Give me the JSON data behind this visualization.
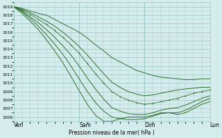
{
  "title": "",
  "xlabel": "Pression niveau de la mer( hPa )",
  "ylabel": "",
  "bg_color": "#d4ecec",
  "grid_color": "#a0c8c8",
  "line_color": "#2d6e2d",
  "ylim": [
    1005.5,
    1019.5
  ],
  "yticks": [
    1006,
    1007,
    1008,
    1009,
    1010,
    1011,
    1012,
    1013,
    1014,
    1015,
    1016,
    1017,
    1018,
    1019
  ],
  "day_labels": [
    "Ven",
    "Sam",
    "Dim",
    "Lun"
  ],
  "day_positions": [
    0,
    48,
    96,
    144
  ],
  "num_hours": 144,
  "lines": [
    {
      "x": [
        0,
        6,
        12,
        18,
        24,
        30,
        36,
        42,
        48,
        54,
        60,
        66,
        72,
        78,
        84,
        90,
        96,
        102,
        108,
        114,
        120,
        126,
        132,
        138,
        144
      ],
      "y": [
        1019.0,
        1018.8,
        1018.5,
        1018.2,
        1018.0,
        1017.5,
        1017.0,
        1016.5,
        1016.0,
        1015.3,
        1014.5,
        1013.8,
        1013.0,
        1012.5,
        1012.0,
        1011.5,
        1011.2,
        1010.9,
        1010.7,
        1010.6,
        1010.5,
        1010.4,
        1010.4,
        1010.5,
        1010.5
      ]
    },
    {
      "x": [
        0,
        6,
        12,
        18,
        24,
        30,
        36,
        42,
        48,
        54,
        60,
        66,
        72,
        78,
        84,
        90,
        96,
        102,
        108,
        114,
        120,
        126,
        132,
        138,
        144
      ],
      "y": [
        1019.0,
        1018.7,
        1018.3,
        1017.8,
        1017.3,
        1016.7,
        1016.0,
        1015.2,
        1014.3,
        1013.3,
        1012.2,
        1011.1,
        1010.1,
        1009.5,
        1009.0,
        1008.7,
        1008.5,
        1008.6,
        1008.8,
        1009.0,
        1009.2,
        1009.3,
        1009.4,
        1009.5,
        1009.5
      ]
    },
    {
      "x": [
        0,
        6,
        12,
        18,
        24,
        30,
        36,
        42,
        48,
        54,
        60,
        66,
        72,
        78,
        84,
        90,
        96,
        102,
        108,
        114,
        120,
        126,
        132,
        138,
        144
      ],
      "y": [
        1019.0,
        1018.6,
        1018.1,
        1017.5,
        1016.9,
        1016.2,
        1015.4,
        1014.5,
        1013.5,
        1012.3,
        1011.1,
        1010.0,
        1009.0,
        1008.4,
        1008.0,
        1007.7,
        1007.5,
        1007.6,
        1007.8,
        1008.0,
        1008.2,
        1008.5,
        1008.8,
        1009.0,
        1009.2
      ],
      "dotted": true
    },
    {
      "x": [
        0,
        6,
        12,
        18,
        24,
        30,
        36,
        42,
        48,
        54,
        60,
        66,
        72,
        78,
        84,
        90,
        96,
        102,
        108,
        114,
        120,
        126,
        132,
        138,
        144
      ],
      "y": [
        1019.0,
        1018.5,
        1017.8,
        1017.1,
        1016.3,
        1015.4,
        1014.4,
        1013.3,
        1012.0,
        1010.6,
        1009.3,
        1008.1,
        1007.1,
        1006.7,
        1006.4,
        1006.3,
        1006.3,
        1006.5,
        1006.8,
        1007.0,
        1007.1,
        1007.4,
        1007.8,
        1008.2,
        1008.5
      ]
    },
    {
      "x": [
        0,
        6,
        12,
        18,
        24,
        30,
        36,
        42,
        48,
        54,
        60,
        66,
        72,
        78,
        84,
        90,
        96,
        102,
        108,
        114,
        120,
        126,
        132,
        138,
        144
      ],
      "y": [
        1019.0,
        1018.4,
        1017.6,
        1016.7,
        1015.7,
        1014.6,
        1013.4,
        1012.0,
        1010.5,
        1009.0,
        1007.7,
        1006.7,
        1006.0,
        1005.8,
        1005.7,
        1005.7,
        1005.8,
        1006.1,
        1006.4,
        1006.5,
        1006.5,
        1006.8,
        1007.3,
        1007.8,
        1008.2
      ]
    },
    {
      "x": [
        0,
        6,
        12,
        18,
        24,
        30,
        36,
        42,
        48,
        54,
        60,
        66,
        72,
        78,
        84,
        90,
        96,
        102,
        108,
        114,
        120,
        126,
        132,
        138,
        144
      ],
      "y": [
        1019.0,
        1018.2,
        1017.3,
        1016.3,
        1015.1,
        1013.8,
        1012.4,
        1010.8,
        1009.1,
        1007.5,
        1006.2,
        1005.5,
        1005.5,
        1005.8,
        1006.0,
        1006.0,
        1006.0,
        1006.2,
        1006.5,
        1006.5,
        1006.3,
        1006.5,
        1007.0,
        1007.5,
        1007.8
      ]
    }
  ]
}
